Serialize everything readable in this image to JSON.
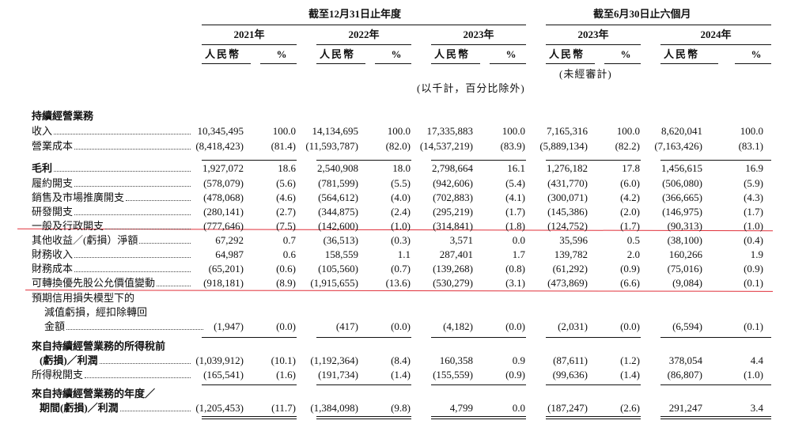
{
  "header": {
    "group_annual": "截至12月31日止年度",
    "group_interim": "截至6月30日止六個月",
    "years": [
      "2021年",
      "2022年",
      "2023年",
      "2023年",
      "2024年"
    ],
    "currency": "人民幣",
    "percent": "%",
    "unaudited": "(未經審計)",
    "note": "(以千計，百分比除外)"
  },
  "section": "持續經營業務",
  "rows": [
    {
      "label": [
        "收入"
      ],
      "values": [
        "10,345,495",
        "100.0",
        "14,134,695",
        "100.0",
        "17,335,883",
        "100.0",
        "7,165,316",
        "100.0",
        "8,620,041",
        "100.0"
      ]
    },
    {
      "label": [
        "營業成本"
      ],
      "values": [
        "(8,418,423)",
        "(81.4)",
        "(11,593,787)",
        "(82.0)",
        "(14,537,219)",
        "(83.9)",
        "(5,889,134)",
        "(82.2)",
        "(7,163,426)",
        "(83.1)"
      ]
    },
    {
      "label": [
        "毛利"
      ],
      "values": [
        "1,927,072",
        "18.6",
        "2,540,908",
        "18.0",
        "2,798,664",
        "16.1",
        "1,276,182",
        "17.8",
        "1,456,615",
        "16.9"
      ]
    },
    {
      "label": [
        "履約開支"
      ],
      "values": [
        "(578,079)",
        "(5.6)",
        "(781,599)",
        "(5.5)",
        "(942,606)",
        "(5.4)",
        "(431,770)",
        "(6.0)",
        "(506,080)",
        "(5.9)"
      ]
    },
    {
      "label": [
        "銷售及市場推廣開支"
      ],
      "values": [
        "(478,068)",
        "(4.6)",
        "(564,612)",
        "(4.0)",
        "(702,883)",
        "(4.1)",
        "(300,071)",
        "(4.2)",
        "(366,665)",
        "(4.3)"
      ]
    },
    {
      "label": [
        "研發開支"
      ],
      "values": [
        "(280,141)",
        "(2.7)",
        "(344,875)",
        "(2.4)",
        "(295,219)",
        "(1.7)",
        "(145,386)",
        "(2.0)",
        "(146,975)",
        "(1.7)"
      ]
    },
    {
      "label": [
        "一般及行政開支"
      ],
      "values": [
        "(777,646)",
        "(7.5)",
        "(142,600)",
        "(1.0)",
        "(314,841)",
        "(1.8)",
        "(124,752)",
        "(1.7)",
        "(90,313)",
        "(1.0)"
      ]
    },
    {
      "label": [
        "其他收益／(虧損）淨額"
      ],
      "values": [
        "67,292",
        "0.7",
        "(36,513)",
        "(0.3)",
        "3,571",
        "0.0",
        "35,596",
        "0.5",
        "(38,100)",
        "(0.4)"
      ]
    },
    {
      "label": [
        "財務收入"
      ],
      "values": [
        "64,987",
        "0.6",
        "158,559",
        "1.1",
        "287,401",
        "1.7",
        "139,782",
        "2.0",
        "160,266",
        "1.9"
      ]
    },
    {
      "label": [
        "財務成本"
      ],
      "values": [
        "(65,201)",
        "(0.6)",
        "(105,560)",
        "(0.7)",
        "(139,268)",
        "(0.8)",
        "(61,292)",
        "(0.9)",
        "(75,016)",
        "(0.9)"
      ]
    },
    {
      "label": [
        "可轉換優先股公允價值變動"
      ],
      "values": [
        "(918,181)",
        "(8.9)",
        "(1,915,655)",
        "(13.6)",
        "(530,279)",
        "(3.1)",
        "(473,869)",
        "(6.6)",
        "(9,084)",
        "(0.1)"
      ]
    },
    {
      "label": [
        "預期信用損失模型下的",
        "減值虧損，經扣除轉回",
        "金額"
      ],
      "values": [
        "(1,947)",
        "(0.0)",
        "(417)",
        "(0.0)",
        "(4,182)",
        "(0.0)",
        "(2,031)",
        "(0.0)",
        "(6,594)",
        "(0.1)"
      ]
    },
    {
      "label": [
        "來自持續經營業務的所得稅前",
        "(虧損)／利潤"
      ],
      "values": [
        "(1,039,912)",
        "(10.1)",
        "(1,192,364)",
        "(8.4)",
        "160,358",
        "0.9",
        "(87,611)",
        "(1.2)",
        "378,054",
        "4.4"
      ]
    },
    {
      "label": [
        "所得稅開支"
      ],
      "values": [
        "(165,541)",
        "(1.6)",
        "(191,734)",
        "(1.4)",
        "(155,559)",
        "(0.9)",
        "(99,636)",
        "(1.4)",
        "(86,807)",
        "(1.0)"
      ]
    },
    {
      "label": [
        "來自持續經營業務的年度／",
        "期間(虧損)／利潤"
      ],
      "values": [
        "(1,205,453)",
        "(11.7)",
        "(1,384,098)",
        "(9.8)",
        "4,799",
        "0.0",
        "(187,247)",
        "(2.6)",
        "291,247",
        "3.4"
      ]
    }
  ]
}
